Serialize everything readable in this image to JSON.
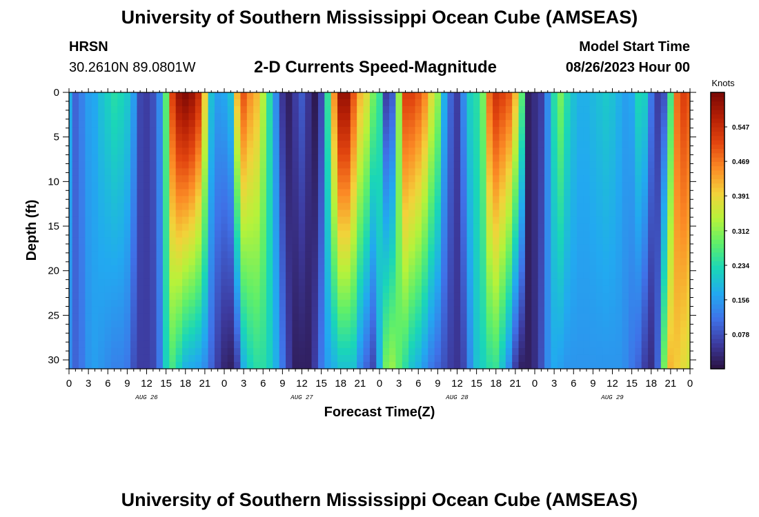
{
  "page": {
    "title": "University of Southern Mississippi Ocean Cube (AMSEAS)",
    "station_name": "HRSN",
    "station_coords": "30.2610N  89.0801W",
    "model_start_label": "Model Start Time",
    "model_start_value": "08/26/2023 Hour 00",
    "footer_title": "University of Southern Mississippi Ocean Cube (AMSEAS)"
  },
  "chart_data": {
    "type": "heatmap",
    "title": "2-D Currents Speed-Magnitude",
    "xlabel": "Forecast Time(Z)",
    "ylabel": "Depth (ft)",
    "units": "Knots",
    "x_range_hours": [
      0,
      96
    ],
    "y_range_ft": [
      0,
      31
    ],
    "y_ticks": [
      0,
      5,
      10,
      15,
      20,
      25,
      30
    ],
    "x_tick_labels": [
      "0",
      "3",
      "6",
      "9",
      "12",
      "15",
      "18",
      "21",
      "0",
      "3",
      "6",
      "9",
      "12",
      "15",
      "18",
      "21",
      "0",
      "3",
      "6",
      "9",
      "12",
      "15",
      "18",
      "21",
      "0",
      "3",
      "6",
      "9",
      "12",
      "15",
      "18",
      "21",
      "0"
    ],
    "date_labels": [
      {
        "label": "AUG 26",
        "hour": 12
      },
      {
        "label": "AUG 27",
        "hour": 36
      },
      {
        "label": "AUG 28",
        "hour": 60
      },
      {
        "label": "AUG 29",
        "hour": 84
      }
    ],
    "colorbar_ticks": [
      "0.078",
      "0.156",
      "0.234",
      "0.312",
      "0.391",
      "0.469",
      "0.547"
    ],
    "value_range": [
      0,
      0.625
    ],
    "colorbar_colors": [
      "#2a1240",
      "#3d3a9e",
      "#3f72e8",
      "#22a9f0",
      "#1ad6b8",
      "#5fef6a",
      "#b7f23a",
      "#f3d13a",
      "#fb8a25",
      "#e2450f",
      "#b51f05",
      "#7a0805"
    ],
    "speed_profile_hours": [
      0,
      1,
      2,
      3,
      4,
      5,
      6,
      7,
      8,
      9,
      10,
      11,
      12,
      13,
      14,
      15,
      16,
      17,
      18,
      19,
      20,
      21,
      22,
      23,
      24,
      25,
      26,
      27,
      28,
      29,
      30,
      31,
      32,
      33,
      34,
      35,
      36,
      37,
      38,
      39,
      40,
      41,
      42,
      43,
      44,
      45,
      46,
      47,
      48,
      49,
      50,
      51,
      52,
      53,
      54,
      55,
      56,
      57,
      58,
      59,
      60,
      61,
      62,
      63,
      64,
      65,
      66,
      67,
      68,
      69,
      70,
      71,
      72,
      73,
      74,
      75,
      76,
      77,
      78,
      79,
      80,
      81,
      82,
      83,
      84,
      85,
      86,
      87,
      88,
      89,
      90,
      91,
      92,
      93,
      94,
      95,
      96
    ],
    "speed_surface_knots": [
      0.18,
      0.1,
      0.13,
      0.16,
      0.17,
      0.2,
      0.22,
      0.24,
      0.23,
      0.21,
      0.16,
      0.07,
      0.06,
      0.08,
      0.14,
      0.28,
      0.52,
      0.6,
      0.62,
      0.6,
      0.55,
      0.4,
      0.2,
      0.16,
      0.17,
      0.2,
      0.42,
      0.5,
      0.45,
      0.42,
      0.34,
      0.24,
      0.14,
      0.05,
      0.02,
      0.06,
      0.09,
      0.05,
      0.01,
      0.07,
      0.25,
      0.45,
      0.6,
      0.6,
      0.5,
      0.42,
      0.38,
      0.3,
      0.25,
      0.06,
      0.09,
      0.32,
      0.52,
      0.52,
      0.5,
      0.46,
      0.38,
      0.32,
      0.18,
      0.1,
      0.06,
      0.14,
      0.22,
      0.24,
      0.3,
      0.48,
      0.54,
      0.52,
      0.5,
      0.42,
      0.28,
      0.02,
      0.04,
      0.06,
      0.14,
      0.24,
      0.3,
      0.24,
      0.2,
      0.18,
      0.18,
      0.19,
      0.2,
      0.21,
      0.2,
      0.18,
      0.16,
      0.17,
      0.23,
      0.22,
      0.12,
      0.06,
      0.08,
      0.26,
      0.48,
      0.52,
      0.5
    ],
    "speed_bottom_knots": [
      0.14,
      0.1,
      0.12,
      0.15,
      0.16,
      0.15,
      0.14,
      0.13,
      0.13,
      0.12,
      0.08,
      0.06,
      0.06,
      0.07,
      0.12,
      0.22,
      0.26,
      0.22,
      0.18,
      0.17,
      0.16,
      0.14,
      0.1,
      0.06,
      0.03,
      0.02,
      0.06,
      0.18,
      0.22,
      0.24,
      0.24,
      0.22,
      0.18,
      0.12,
      0.06,
      0.02,
      0.02,
      0.02,
      0.06,
      0.12,
      0.16,
      0.18,
      0.2,
      0.2,
      0.2,
      0.14,
      0.1,
      0.07,
      0.18,
      0.3,
      0.32,
      0.28,
      0.24,
      0.2,
      0.18,
      0.15,
      0.12,
      0.1,
      0.08,
      0.06,
      0.05,
      0.07,
      0.14,
      0.2,
      0.22,
      0.24,
      0.25,
      0.2,
      0.14,
      0.06,
      0.02,
      0.02,
      0.04,
      0.08,
      0.14,
      0.17,
      0.16,
      0.15,
      0.15,
      0.15,
      0.15,
      0.15,
      0.15,
      0.15,
      0.15,
      0.15,
      0.14,
      0.12,
      0.1,
      0.06,
      0.04,
      0.1,
      0.3,
      0.42,
      0.4,
      0.38,
      0.36
    ]
  }
}
